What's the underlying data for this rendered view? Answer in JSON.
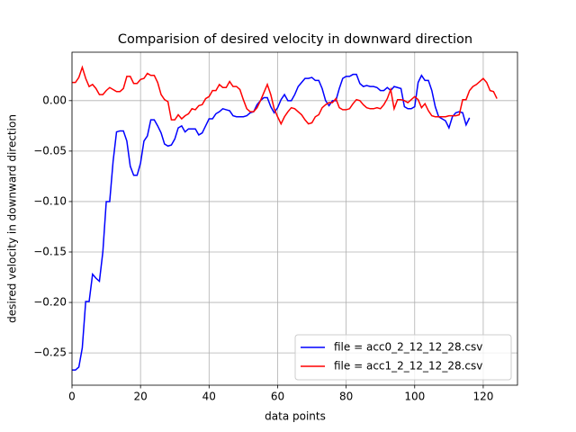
{
  "chart_data": {
    "type": "line",
    "title": "Comparision of desired velocity in downward direction",
    "x_label": "data points",
    "y_label": "desired velocity in downward direction",
    "xlim": [
      0,
      130
    ],
    "ylim": [
      -0.282,
      0.048
    ],
    "xticks": [
      0,
      20,
      40,
      60,
      80,
      100,
      120
    ],
    "yticks": [
      {
        "value": -0.25,
        "label": "−0.25"
      },
      {
        "value": -0.2,
        "label": "−0.20"
      },
      {
        "value": -0.15,
        "label": "−0.15"
      },
      {
        "value": -0.1,
        "label": "−0.10"
      },
      {
        "value": -0.05,
        "label": "−0.05"
      },
      {
        "value": 0,
        "label": "0.00"
      }
    ],
    "grid": true,
    "legend": "lower right",
    "series": [
      {
        "name": "file = acc0_2_12_12_28.csv",
        "color": "#0000ff",
        "x": [
          0,
          1,
          2,
          3,
          4,
          5,
          6,
          7,
          8,
          9,
          10,
          11,
          12,
          13,
          14,
          15,
          16,
          17,
          18,
          19,
          20,
          21,
          22,
          23,
          24,
          25,
          26,
          27,
          28,
          29,
          30,
          31,
          32,
          33,
          34,
          35,
          36,
          37,
          38,
          39,
          40,
          41,
          42,
          43,
          44,
          45,
          46,
          47,
          48,
          49,
          50,
          51,
          52,
          53,
          54,
          55,
          56,
          57,
          58,
          59,
          60,
          61,
          62,
          63,
          64,
          65,
          66,
          67,
          68,
          69,
          70,
          71,
          72,
          73,
          74,
          75,
          76,
          77,
          78,
          79,
          80,
          81,
          82,
          83,
          84,
          85,
          86,
          87,
          88,
          89,
          90,
          91,
          92,
          93,
          94,
          95,
          96,
          97,
          98,
          99,
          100,
          101,
          102,
          103,
          104,
          105,
          106,
          107,
          108,
          109,
          110,
          111,
          112,
          113,
          114,
          115,
          116
        ],
        "values": [
          -0.267,
          -0.267,
          -0.264,
          -0.245,
          -0.199,
          -0.199,
          -0.172,
          -0.176,
          -0.179,
          -0.15,
          -0.1,
          -0.1,
          -0.06,
          -0.031,
          -0.03,
          -0.03,
          -0.04,
          -0.065,
          -0.074,
          -0.074,
          -0.062,
          -0.04,
          -0.035,
          -0.019,
          -0.019,
          -0.025,
          -0.032,
          -0.043,
          -0.045,
          -0.044,
          -0.038,
          -0.027,
          -0.025,
          -0.031,
          -0.028,
          -0.028,
          -0.028,
          -0.034,
          -0.032,
          -0.025,
          -0.018,
          -0.018,
          -0.013,
          -0.011,
          -0.008,
          -0.009,
          -0.01,
          -0.015,
          -0.016,
          -0.016,
          -0.016,
          -0.015,
          -0.012,
          -0.011,
          -0.004,
          0,
          0.003,
          0.003,
          -0.006,
          -0.012,
          -0.007,
          0.001,
          0.006,
          0,
          0,
          0.006,
          0.014,
          0.018,
          0.022,
          0.022,
          0.023,
          0.02,
          0.02,
          0.012,
          0,
          -0.005,
          0,
          0,
          0.012,
          0.022,
          0.024,
          0.024,
          0.026,
          0.026,
          0.017,
          0.014,
          0.015,
          0.014,
          0.014,
          0.013,
          0.01,
          0.01,
          0.013,
          0.01,
          0.014,
          0.013,
          0.012,
          -0.006,
          -0.008,
          -0.008,
          -0.006,
          0.018,
          0.025,
          0.02,
          0.02,
          0.01,
          -0.006,
          -0.016,
          -0.018,
          -0.02,
          -0.027,
          -0.016,
          -0.012,
          -0.011,
          -0.012,
          -0.024,
          -0.017
        ]
      },
      {
        "name": "file = acc1_2_12_12_28.csv",
        "color": "#ff0000",
        "x": [
          0,
          1,
          2,
          3,
          4,
          5,
          6,
          7,
          8,
          9,
          10,
          11,
          12,
          13,
          14,
          15,
          16,
          17,
          18,
          19,
          20,
          21,
          22,
          23,
          24,
          25,
          26,
          27,
          28,
          29,
          30,
          31,
          32,
          33,
          34,
          35,
          36,
          37,
          38,
          39,
          40,
          41,
          42,
          43,
          44,
          45,
          46,
          47,
          48,
          49,
          50,
          51,
          52,
          53,
          54,
          55,
          56,
          57,
          58,
          59,
          60,
          61,
          62,
          63,
          64,
          65,
          66,
          67,
          68,
          69,
          70,
          71,
          72,
          73,
          74,
          75,
          76,
          77,
          78,
          79,
          80,
          81,
          82,
          83,
          84,
          85,
          86,
          87,
          88,
          89,
          90,
          91,
          92,
          93,
          94,
          95,
          96,
          97,
          98,
          99,
          100,
          101,
          102,
          103,
          104,
          105,
          106,
          107,
          108,
          109,
          110,
          111,
          112,
          113,
          114,
          115,
          116,
          117,
          118,
          119,
          120,
          121,
          122,
          123,
          124
        ],
        "values": [
          0.018,
          0.018,
          0.023,
          0.033,
          0.022,
          0.014,
          0.016,
          0.012,
          0.006,
          0.006,
          0.01,
          0.013,
          0.011,
          0.009,
          0.009,
          0.012,
          0.024,
          0.024,
          0.017,
          0.017,
          0.021,
          0.022,
          0.027,
          0.025,
          0.025,
          0.018,
          0.006,
          0.001,
          -0.001,
          -0.019,
          -0.019,
          -0.014,
          -0.018,
          -0.015,
          -0.013,
          -0.008,
          -0.009,
          -0.005,
          -0.004,
          0.002,
          0.004,
          0.01,
          0.01,
          0.016,
          0.013,
          0.013,
          0.019,
          0.014,
          0.014,
          0.011,
          0.001,
          -0.008,
          -0.011,
          -0.011,
          -0.007,
          0,
          0.008,
          0.016,
          0.006,
          -0.008,
          -0.016,
          -0.023,
          -0.016,
          -0.011,
          -0.007,
          -0.008,
          -0.011,
          -0.014,
          -0.019,
          -0.023,
          -0.022,
          -0.016,
          -0.014,
          -0.007,
          -0.004,
          -0.002,
          -0.002,
          0.002,
          -0.007,
          -0.009,
          -0.009,
          -0.008,
          -0.003,
          0.001,
          0,
          -0.004,
          -0.007,
          -0.008,
          -0.008,
          -0.007,
          -0.008,
          -0.004,
          0.002,
          0.011,
          -0.008,
          0.001,
          0.001,
          0,
          -0.002,
          0.001,
          0.004,
          0.001,
          -0.007,
          -0.003,
          -0.01,
          -0.015,
          -0.016,
          -0.016,
          -0.016,
          -0.016,
          -0.015,
          -0.015,
          -0.015,
          -0.014,
          0.001,
          0.001,
          0.01,
          0.014,
          0.016,
          0.019,
          0.022,
          0.018,
          0.01,
          0.009,
          0.002
        ]
      }
    ]
  }
}
